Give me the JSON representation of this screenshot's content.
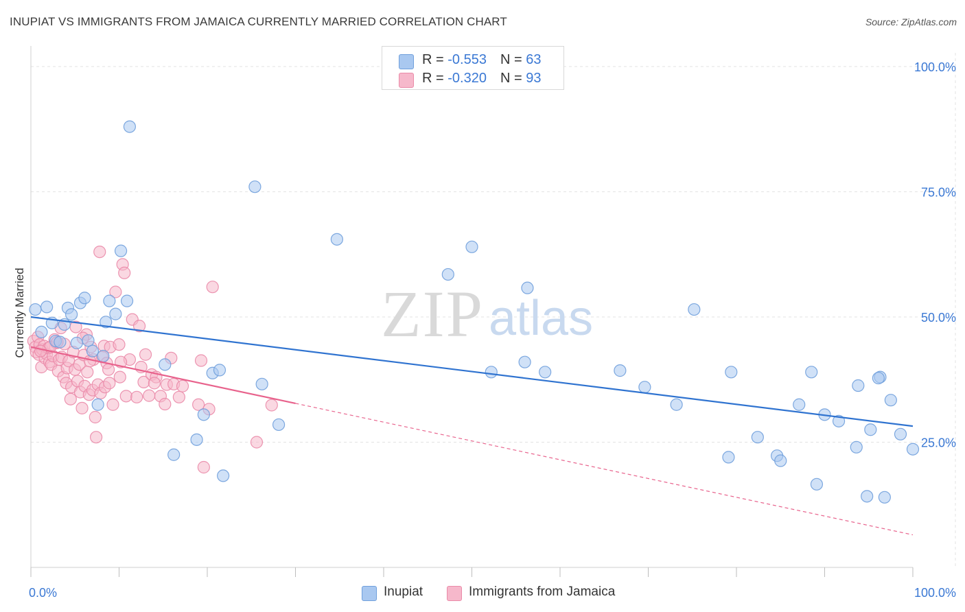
{
  "title": "INUPIAT VS IMMIGRANTS FROM JAMAICA CURRENTLY MARRIED CORRELATION CHART",
  "source": "Source: ZipAtlas.com",
  "watermark": {
    "zip": "ZIP",
    "atlas": "atlas"
  },
  "legend_top": {
    "rows": [
      {
        "r_label": "R = ",
        "r_value": "-0.553",
        "n_label": "N = ",
        "n_value": "63"
      },
      {
        "r_label": "R = ",
        "r_value": "-0.320",
        "n_label": "N = ",
        "n_value": "93"
      }
    ]
  },
  "colors": {
    "blue_fill": "#a9c8f0",
    "blue_stroke": "#6f9fdc",
    "blue_line": "#2f73d0",
    "pink_fill": "#f6b8cb",
    "pink_stroke": "#ea8aa8",
    "pink_line": "#e8628c",
    "grid": "#e3e3e3",
    "tick_text": "#3a78d4"
  },
  "chart_data": {
    "type": "scatter",
    "title": "INUPIAT VS IMMIGRANTS FROM JAMAICA CURRENTLY MARRIED CORRELATION CHART",
    "xlabel": "",
    "ylabel": "Currently Married",
    "xlim": [
      0,
      100
    ],
    "ylim": [
      0,
      105
    ],
    "x_tick_labels": [
      "0.0%",
      "100.0%"
    ],
    "y_ticks": [
      25,
      50,
      75,
      100
    ],
    "y_tick_labels": [
      "25.0%",
      "50.0%",
      "75.0%",
      "100.0%"
    ],
    "grid": true,
    "legend_position": "bottom",
    "series": [
      {
        "name": "Inupiat",
        "color": "blue",
        "R": -0.553,
        "N": 63,
        "trend": {
          "x": [
            0,
            100
          ],
          "y": [
            50.0,
            28.2
          ],
          "dashed_after": null
        },
        "points": [
          [
            0.5,
            51.5
          ],
          [
            1.2,
            47.0
          ],
          [
            1.8,
            52.0
          ],
          [
            2.4,
            48.8
          ],
          [
            2.8,
            45.2
          ],
          [
            3.3,
            45.0
          ],
          [
            3.8,
            48.5
          ],
          [
            4.2,
            51.8
          ],
          [
            4.6,
            50.5
          ],
          [
            5.2,
            44.8
          ],
          [
            5.6,
            52.8
          ],
          [
            6.1,
            53.8
          ],
          [
            6.5,
            45.3
          ],
          [
            7.0,
            43.2
          ],
          [
            7.6,
            32.5
          ],
          [
            8.2,
            42.2
          ],
          [
            8.5,
            49.0
          ],
          [
            8.9,
            53.2
          ],
          [
            9.6,
            50.6
          ],
          [
            10.2,
            63.2
          ],
          [
            10.9,
            53.2
          ],
          [
            11.2,
            88.0
          ],
          [
            15.2,
            40.5
          ],
          [
            16.2,
            22.5
          ],
          [
            18.8,
            25.5
          ],
          [
            19.6,
            30.5
          ],
          [
            20.6,
            38.8
          ],
          [
            21.4,
            39.4
          ],
          [
            21.8,
            18.3
          ],
          [
            25.4,
            76.0
          ],
          [
            26.2,
            36.6
          ],
          [
            28.1,
            28.5
          ],
          [
            34.7,
            65.5
          ],
          [
            47.3,
            58.5
          ],
          [
            50.0,
            64.0
          ],
          [
            52.2,
            39.0
          ],
          [
            56.0,
            41.0
          ],
          [
            56.3,
            55.8
          ],
          [
            58.3,
            39.0
          ],
          [
            66.8,
            39.3
          ],
          [
            69.6,
            36.0
          ],
          [
            73.2,
            32.5
          ],
          [
            75.2,
            51.5
          ],
          [
            79.1,
            22.0
          ],
          [
            79.4,
            39.0
          ],
          [
            82.4,
            26.0
          ],
          [
            84.6,
            22.3
          ],
          [
            85.0,
            21.3
          ],
          [
            87.1,
            32.5
          ],
          [
            88.5,
            39.0
          ],
          [
            89.1,
            16.6
          ],
          [
            90.0,
            30.5
          ],
          [
            91.6,
            29.2
          ],
          [
            93.8,
            36.3
          ],
          [
            93.6,
            24.0
          ],
          [
            94.8,
            14.2
          ],
          [
            95.2,
            27.5
          ],
          [
            96.3,
            38.0
          ],
          [
            96.1,
            37.8
          ],
          [
            96.8,
            14.0
          ],
          [
            97.5,
            33.4
          ],
          [
            98.6,
            26.6
          ],
          [
            100.0,
            23.6
          ]
        ]
      },
      {
        "name": "Immigrants from Jamaica",
        "color": "pink",
        "R": -0.32,
        "N": 93,
        "trend": {
          "x": [
            0,
            100
          ],
          "y": [
            44.0,
            6.5
          ],
          "solid_until": 30
        },
        "points": [
          [
            0.3,
            45.2
          ],
          [
            0.5,
            44.0
          ],
          [
            0.6,
            43.0
          ],
          [
            0.8,
            46.0
          ],
          [
            0.9,
            42.5
          ],
          [
            1.0,
            44.5
          ],
          [
            1.2,
            40.0
          ],
          [
            1.3,
            43.5
          ],
          [
            1.5,
            44.2
          ],
          [
            1.6,
            41.8
          ],
          [
            1.8,
            42.6
          ],
          [
            2.0,
            43.8
          ],
          [
            2.1,
            41.0
          ],
          [
            2.3,
            40.5
          ],
          [
            2.5,
            42.2
          ],
          [
            2.7,
            45.5
          ],
          [
            2.9,
            44.8
          ],
          [
            3.1,
            39.2
          ],
          [
            3.2,
            41.5
          ],
          [
            3.4,
            47.8
          ],
          [
            3.5,
            42.0
          ],
          [
            3.7,
            38.0
          ],
          [
            3.8,
            44.6
          ],
          [
            4.0,
            36.8
          ],
          [
            4.1,
            39.8
          ],
          [
            4.3,
            41.2
          ],
          [
            4.5,
            33.6
          ],
          [
            4.6,
            36.0
          ],
          [
            4.8,
            43.0
          ],
          [
            5.0,
            39.5
          ],
          [
            5.1,
            48.0
          ],
          [
            5.3,
            37.2
          ],
          [
            5.5,
            40.5
          ],
          [
            5.6,
            35.0
          ],
          [
            5.8,
            31.8
          ],
          [
            6.0,
            42.4
          ],
          [
            6.1,
            36.2
          ],
          [
            6.3,
            46.5
          ],
          [
            6.4,
            39.0
          ],
          [
            6.6,
            34.5
          ],
          [
            6.8,
            44.0
          ],
          [
            7.0,
            35.4
          ],
          [
            7.1,
            41.5
          ],
          [
            7.3,
            30.0
          ],
          [
            7.4,
            26.0
          ],
          [
            7.6,
            36.5
          ],
          [
            7.8,
            63.0
          ],
          [
            7.9,
            34.8
          ],
          [
            8.1,
            42.0
          ],
          [
            8.3,
            44.2
          ],
          [
            8.4,
            36.0
          ],
          [
            8.6,
            40.8
          ],
          [
            8.8,
            39.5
          ],
          [
            9.0,
            44.0
          ],
          [
            9.3,
            32.5
          ],
          [
            9.6,
            55.0
          ],
          [
            10.0,
            44.5
          ],
          [
            10.1,
            38.0
          ],
          [
            10.4,
            60.5
          ],
          [
            10.6,
            58.8
          ],
          [
            10.8,
            34.2
          ],
          [
            11.2,
            41.5
          ],
          [
            11.5,
            49.5
          ],
          [
            12.0,
            34.0
          ],
          [
            12.3,
            48.2
          ],
          [
            12.8,
            37.0
          ],
          [
            13.0,
            42.5
          ],
          [
            13.7,
            38.5
          ],
          [
            14.2,
            38.0
          ],
          [
            14.7,
            34.2
          ],
          [
            15.2,
            32.6
          ],
          [
            15.4,
            36.5
          ],
          [
            15.9,
            41.8
          ],
          [
            16.2,
            36.6
          ],
          [
            16.8,
            34.0
          ],
          [
            17.2,
            36.2
          ],
          [
            19.0,
            32.5
          ],
          [
            19.3,
            41.3
          ],
          [
            19.6,
            20.0
          ],
          [
            20.2,
            31.6
          ],
          [
            20.6,
            56.0
          ],
          [
            25.6,
            25.0
          ],
          [
            27.3,
            32.4
          ],
          [
            2.2,
            44.0
          ],
          [
            3.0,
            45.0
          ],
          [
            1.1,
            43.2
          ],
          [
            5.9,
            45.8
          ],
          [
            6.7,
            41.2
          ],
          [
            8.9,
            36.8
          ],
          [
            10.2,
            41.0
          ],
          [
            12.5,
            40.0
          ],
          [
            13.4,
            34.3
          ],
          [
            14.0,
            36.8
          ]
        ]
      }
    ]
  },
  "axis": {
    "y_label": "Currently Married",
    "x_min_label": "0.0%",
    "x_max_label": "100.0%"
  },
  "bottom_legend": {
    "items": [
      {
        "label": "Inupiat"
      },
      {
        "label": "Immigrants from Jamaica"
      }
    ]
  }
}
